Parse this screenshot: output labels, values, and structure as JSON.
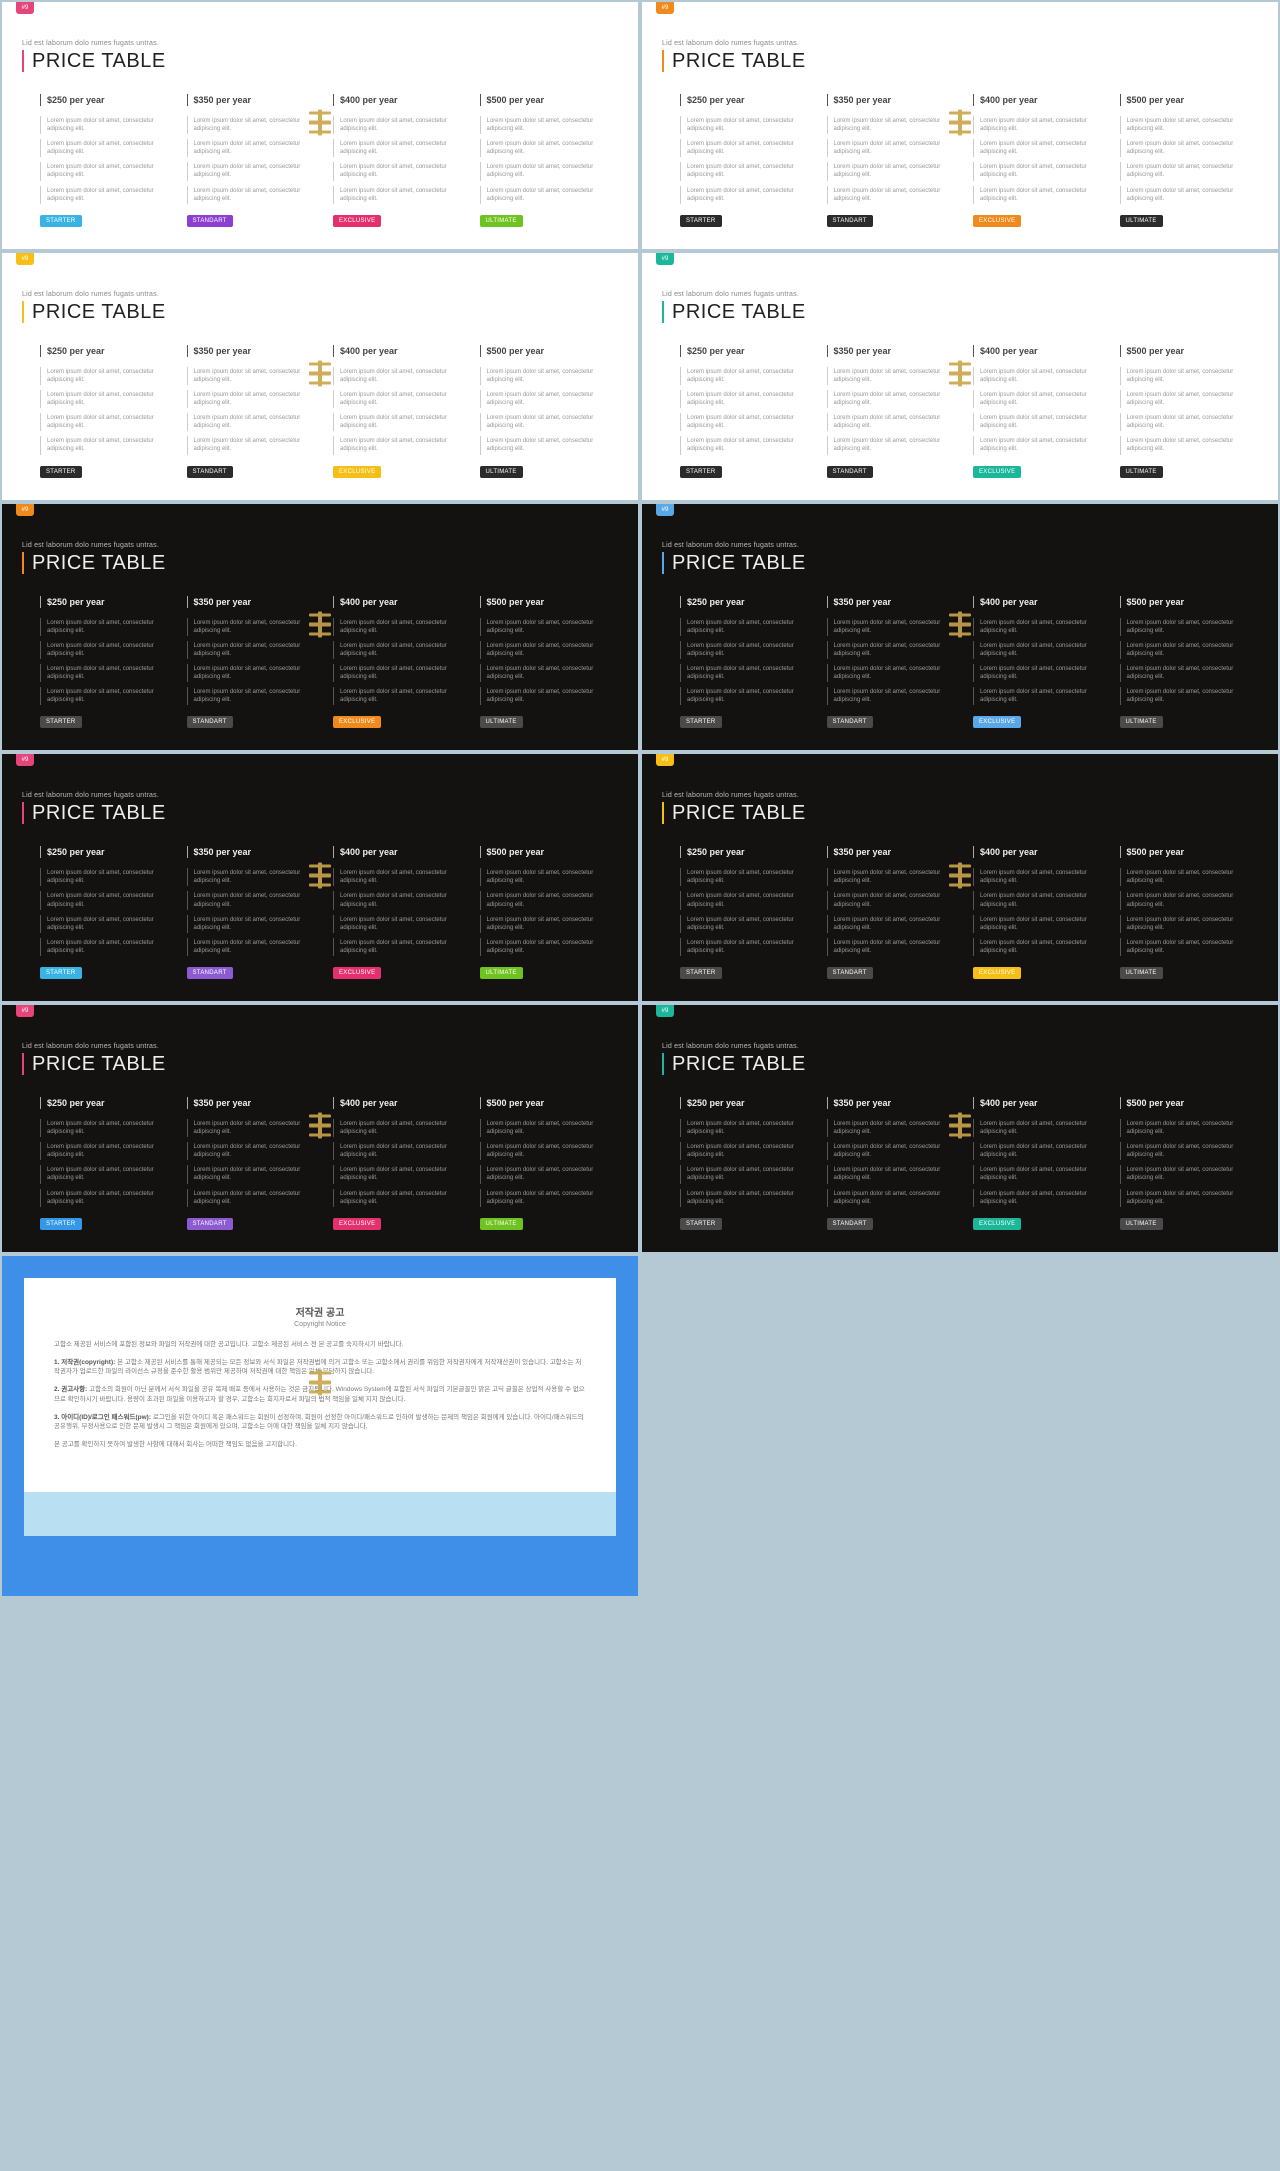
{
  "common": {
    "badge_label": "#9",
    "subhead": "Lid est laborum dolo rumes fugats untras.",
    "title": "PRICE TABLE",
    "features": [
      "Lorem ipsum dolor sit amet, consectetur adipiscing elit.",
      "Lorem ipsum dolor sit amet, consectetur adipiscing elit.",
      "Lorem ipsum dolor sit amet, consectetur adipiscing elit.",
      "Lorem ipsum dolor sit amet, consectetur adipiscing elit."
    ],
    "prices": [
      "$250 per year",
      "$350 per year",
      "$400 per year",
      "$500 per year"
    ],
    "plan_labels": [
      "STARTER",
      "STANDART",
      "EXCLUSIVE",
      "ULTIMATE"
    ]
  },
  "panels": [
    {
      "theme": "light",
      "badge": "#e6447b",
      "accent": "#e6447b",
      "btn_colors": [
        "#38b3e3",
        "#8d3fd1",
        "#e53070",
        "#6fc320"
      ]
    },
    {
      "theme": "light",
      "badge": "#f08a1c",
      "accent": "#f08a1c",
      "btn_colors": [
        "#2b2b2b",
        "#2b2b2b",
        "#f08a1c",
        "#2b2b2b"
      ]
    },
    {
      "theme": "light",
      "badge": "#f6bf15",
      "accent": "#f6bf15",
      "btn_colors": [
        "#2b2b2b",
        "#2b2b2b",
        "#f6bf15",
        "#2b2b2b"
      ]
    },
    {
      "theme": "light",
      "badge": "#1ab79b",
      "accent": "#1ab79b",
      "btn_colors": [
        "#2b2b2b",
        "#2b2b2b",
        "#1ab79b",
        "#2b2b2b"
      ]
    },
    {
      "theme": "dark",
      "badge": "#f08a1c",
      "accent": "#f08a1c",
      "btn_colors": [
        "#4a4a4a",
        "#4a4a4a",
        "#f08a1c",
        "#4a4a4a"
      ]
    },
    {
      "theme": "dark",
      "badge": "#5aa8e8",
      "accent": "#5aa8e8",
      "btn_colors": [
        "#4a4a4a",
        "#4a4a4a",
        "#5aa8e8",
        "#4a4a4a"
      ]
    },
    {
      "theme": "dark",
      "badge": "#e6447b",
      "accent": "#e6447b",
      "btn_colors": [
        "#38b3e3",
        "#8d5bd1",
        "#e53070",
        "#6fc320"
      ]
    },
    {
      "theme": "dark",
      "badge": "#f6bf15",
      "accent": "#f6bf15",
      "btn_colors": [
        "#4a4a4a",
        "#4a4a4a",
        "#f6bf15",
        "#4a4a4a"
      ]
    },
    {
      "theme": "dark",
      "badge": "#e6447b",
      "accent": "#e6447b",
      "btn_colors": [
        "#3597e8",
        "#8d5bd1",
        "#e53070",
        "#6fc320"
      ]
    },
    {
      "theme": "dark",
      "badge": "#1ab79b",
      "accent": "#1ab79b",
      "btn_colors": [
        "#4a4a4a",
        "#4a4a4a",
        "#1ab79b",
        "#4a4a4a"
      ]
    }
  ],
  "notice": {
    "title_ko": "저작권 공고",
    "title_en": "Copyright Notice",
    "intro": "고함소 제공된 서비스에 포함된 정보와 파일의 저작권에 대한 공고입니다. 고함소 제공된 서비스 전 본 공고를 숙지하시기 바랍니다.",
    "items": [
      {
        "head": "1. 저작권(copyright):",
        "body": "본 고함소 제공된 서비스를 통해 제공되는 모든 정보와 서식 파일은 저작권법에 의거 고함소 또는 고함소에서 권리를 위임한 저작권자에게 저작재산권이 있습니다. 고함소는 저작권자가 업로드한 파일의 라이선스 규정을 준수한 활용 범위만 제공하며 저작권에 대한 책임은 일체 부담하지 않습니다."
      },
      {
        "head": "2. 권고사항:",
        "body": "고함소의 회원이 아닌 분께서 서식 파일을 공유 복제 배포 등에서 사용하는 것은 금지됩니다. Windows System에 포함된 서식 파일의 기본글꼴인 맑은 고딕 글꼴은 상업적 사용할 수 없으므로 확인하시기 바랍니다. 용량이 초과된 파일을 이용하고자 할 경우, 고함소는 회지자로서 파일의 법적 책임을 일체 지지 않습니다."
      },
      {
        "head": "3. 아이디(ID)/로그인 패스워드(pw):",
        "body": "로그인을 위한 아이디 혹은 패스워드는 회원이 선정하며, 회원이 선정한 아이디/패스워드로 인하여 발생하는 문제의 책임은 회원에게 있습니다. 아이디/패스워드의 공유행위, 부정사용으로 인한 문제 발생시 그 책임은 회원에게 있으며, 고함소는 이에 대한 책임을 일체 지지 않습니다."
      }
    ],
    "outro": "본 공고를 확인하지 못하여 발생한 사항에 대해서 회사는 어떠한 책임도 없음을 고지합니다."
  }
}
